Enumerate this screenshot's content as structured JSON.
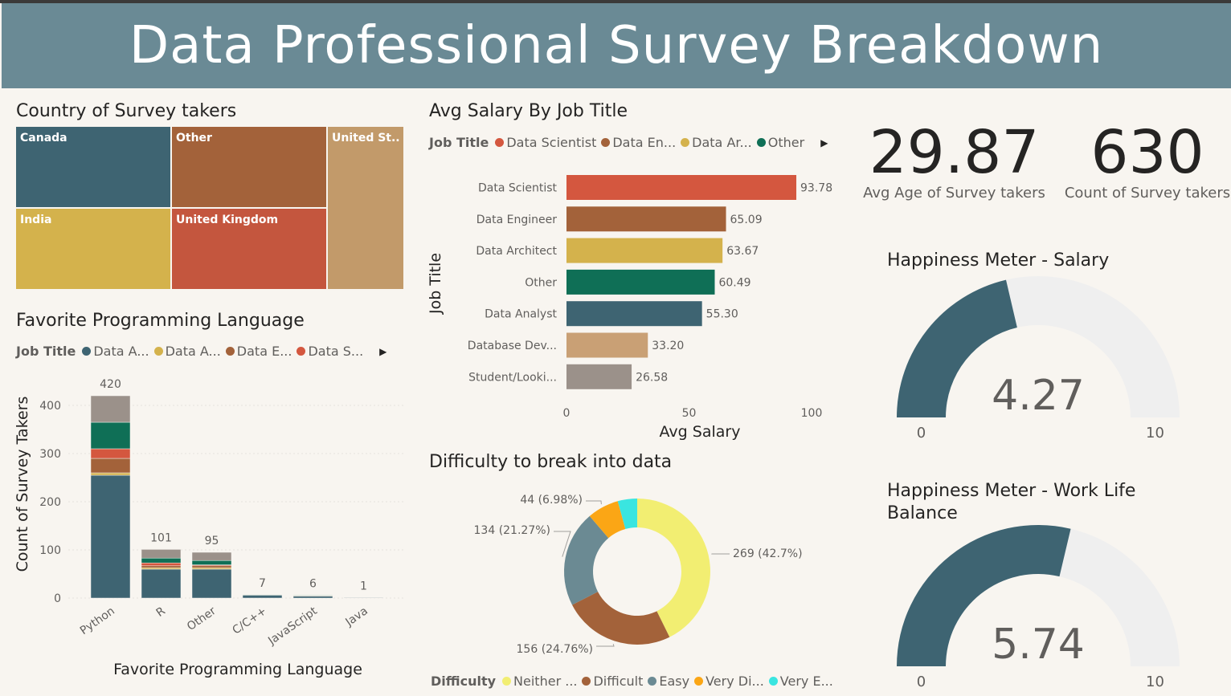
{
  "header": {
    "title": "Data Professional Survey Breakdown"
  },
  "treemap": {
    "title": "Country of Survey takers",
    "cells": [
      {
        "label": "Canada",
        "color": "#3e6472"
      },
      {
        "label": "Other",
        "color": "#a3623a"
      },
      {
        "label": "United St...",
        "color": "#c29a6a"
      },
      {
        "label": "India",
        "color": "#d4b24c"
      },
      {
        "label": "United Kingdom",
        "color": "#c4563e"
      }
    ]
  },
  "salary_chart": {
    "title": "Avg Salary By Job Title",
    "legend_title": "Job Title",
    "legend": [
      {
        "label": "Data Scientist",
        "color": "#d4573f"
      },
      {
        "label": "Data En...",
        "color": "#a3623a"
      },
      {
        "label": "Data Ar...",
        "color": "#d4b24c"
      },
      {
        "label": "Other",
        "color": "#0f6f56"
      }
    ]
  },
  "language_chart": {
    "title": "Favorite Programming Language",
    "legend_title": "Job Title",
    "legend": [
      {
        "label": "Data A...",
        "color": "#3e6472"
      },
      {
        "label": "Data A...",
        "color": "#d4b24c"
      },
      {
        "label": "Data E...",
        "color": "#a3623a"
      },
      {
        "label": "Data S...",
        "color": "#d4573f"
      }
    ]
  },
  "donut_chart": {
    "title": "Difficulty to break into data",
    "legend_title": "Difficulty",
    "legend": [
      {
        "label": "Neither ...",
        "color": "#f2ee72"
      },
      {
        "label": "Difficult",
        "color": "#a3623a"
      },
      {
        "label": "Easy",
        "color": "#6b8a93"
      },
      {
        "label": "Very Di...",
        "color": "#fba615"
      },
      {
        "label": "Very E...",
        "color": "#3ae5e0"
      }
    ]
  },
  "kpis": {
    "avg_age": {
      "value": "29.87",
      "label": "Avg Age of Survey takers"
    },
    "count": {
      "value": "630",
      "label": "Count of Survey takers"
    }
  },
  "gauges": {
    "salary": {
      "title": "Happiness Meter - Salary",
      "value": 4.27,
      "display": "4.27",
      "min": "0",
      "max": "10"
    },
    "work_life": {
      "title_line1": "Happiness Meter - Work Life",
      "title_line2": "Balance",
      "value": 5.74,
      "display": "5.74",
      "min": "0",
      "max": "10"
    }
  },
  "colors": {
    "header_bg": "#6a8a95",
    "gauge_fill": "#3e6472",
    "gauge_track": "#efefef"
  },
  "chart_data": [
    {
      "type": "treemap",
      "title": "Country of Survey takers",
      "categories": [
        "Canada",
        "Other",
        "United St...",
        "India",
        "United Kingdom"
      ]
    },
    {
      "type": "bar",
      "orientation": "horizontal",
      "title": "Avg Salary By Job Title",
      "xlabel": "Avg Salary",
      "ylabel": "Job Title",
      "xlim": [
        0,
        100
      ],
      "xticks": [
        "0",
        "50",
        "100"
      ],
      "categories": [
        "Data Scientist",
        "Data Engineer",
        "Data Architect",
        "Other",
        "Data Analyst",
        "Database Dev...",
        "Student/Looki..."
      ],
      "values": [
        93.78,
        65.09,
        63.67,
        60.49,
        55.3,
        33.2,
        26.58
      ],
      "labels": [
        "93.78",
        "65.09",
        "63.67",
        "60.49",
        "55.30",
        "33.20",
        "26.58"
      ],
      "colors": [
        "#d4573f",
        "#a3623a",
        "#d4b24c",
        "#0f6f56",
        "#3e6472",
        "#c9a075",
        "#9b918a"
      ]
    },
    {
      "type": "bar",
      "stacked": true,
      "title": "Favorite Programming Language",
      "xlabel": "Favorite Programming Language",
      "ylabel": "Count of Survey Takers",
      "ylim": [
        0,
        420
      ],
      "yticks": [
        "0",
        "100",
        "200",
        "300",
        "400"
      ],
      "categories": [
        "Python",
        "R",
        "Other",
        "C/C++",
        "JavaScript",
        "Java"
      ],
      "totals": [
        420,
        101,
        95,
        7,
        6,
        1
      ],
      "total_labels": [
        "420",
        "101",
        "95",
        "7",
        "6",
        "1"
      ],
      "series": [
        {
          "color": "#3e6472",
          "values": [
            255,
            60,
            60,
            6,
            4,
            1
          ]
        },
        {
          "color": "#d4b24c",
          "values": [
            5,
            3,
            3,
            0,
            0,
            0
          ]
        },
        {
          "color": "#a3623a",
          "values": [
            30,
            4,
            4,
            0,
            1,
            0
          ]
        },
        {
          "color": "#d4573f",
          "values": [
            20,
            6,
            2,
            0,
            0,
            0
          ]
        },
        {
          "color": "#0f6f56",
          "values": [
            55,
            10,
            9,
            1,
            1,
            0
          ]
        },
        {
          "color": "#9b918a",
          "values": [
            55,
            18,
            17,
            0,
            0,
            0
          ]
        }
      ]
    },
    {
      "type": "pie",
      "donut": true,
      "title": "Difficulty to break into data",
      "categories": [
        "Neither ...",
        "Difficult",
        "Easy",
        "Very Di...",
        "Very E..."
      ],
      "values": [
        269,
        156,
        134,
        44,
        27
      ],
      "colors": [
        "#f2ee72",
        "#a3623a",
        "#6b8a93",
        "#fba615",
        "#3ae5e0"
      ],
      "labels": [
        "269 (42.7%)",
        "156 (24.76%)",
        "134 (21.27%)",
        "44 (6.98%)",
        ""
      ]
    }
  ]
}
